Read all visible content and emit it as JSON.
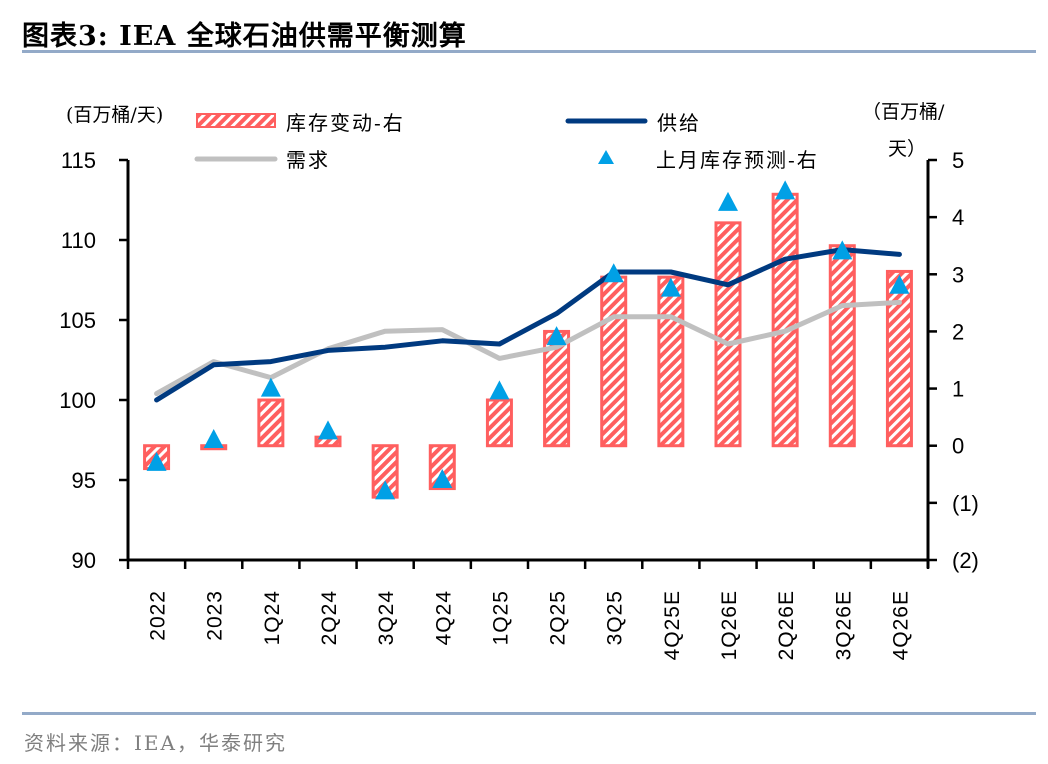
{
  "header": {
    "title": "图表3:  IEA 全球石油供需平衡测算"
  },
  "footer": {
    "source": "资料来源：IEA，华泰研究"
  },
  "colors": {
    "supply": "#003a80",
    "demand": "#c0c0c0",
    "inventory_bar": "#ff5f5f",
    "forecast_marker": "#00a0e6",
    "rule": "#93aac8"
  },
  "chart_data": {
    "type": "bar",
    "title": "IEA 全球石油供需平衡测算",
    "categories": [
      "2022",
      "2023",
      "1Q24",
      "2Q24",
      "3Q24",
      "4Q24",
      "1Q25",
      "2Q25",
      "3Q25",
      "4Q25E",
      "1Q26E",
      "2Q26E",
      "3Q26E",
      "4Q26E"
    ],
    "left_axis": {
      "label": "(百万桶/天)",
      "ylim": [
        90,
        115
      ],
      "ticks": [
        90,
        95,
        100,
        105,
        110,
        115
      ],
      "tick_labels": [
        "90",
        "95",
        "100",
        "105",
        "110",
        "115"
      ]
    },
    "right_axis": {
      "label_line1": "（百万桶/",
      "label_line2": "天）",
      "ylim": [
        -2,
        5
      ],
      "ticks": [
        -2,
        -1,
        0,
        1,
        2,
        3,
        4,
        5
      ],
      "tick_labels": [
        "(2)",
        "(1)",
        "0",
        "1",
        "2",
        "3",
        "4",
        "5"
      ]
    },
    "series": [
      {
        "name": "库存变动-右",
        "type": "bar",
        "axis": "right",
        "values": [
          -0.4,
          -0.05,
          0.8,
          0.15,
          -0.9,
          -0.75,
          0.8,
          2.0,
          2.95,
          2.95,
          3.9,
          4.4,
          3.5,
          3.05
        ]
      },
      {
        "name": "供给",
        "type": "line",
        "axis": "left",
        "values": [
          100.0,
          102.2,
          102.4,
          103.1,
          103.3,
          103.7,
          103.5,
          105.4,
          108.0,
          108.0,
          107.2,
          108.8,
          109.4,
          109.1
        ]
      },
      {
        "name": "需求",
        "type": "line",
        "axis": "left",
        "values": [
          100.4,
          102.4,
          101.4,
          103.2,
          104.3,
          104.4,
          102.6,
          103.3,
          105.2,
          105.2,
          103.5,
          104.3,
          105.9,
          106.1
        ]
      },
      {
        "name": "上月库存预测-右",
        "type": "scatter",
        "marker": "triangle",
        "axis": "right",
        "values": [
          -0.3,
          0.1,
          1.0,
          0.25,
          -0.8,
          -0.6,
          0.95,
          1.9,
          3.0,
          2.75,
          4.25,
          4.45,
          3.4,
          2.8
        ]
      }
    ],
    "legend": {
      "placement": "top",
      "entries": [
        "库存变动-右",
        "供给",
        "需求",
        "上月库存预测-右"
      ]
    },
    "grid": false
  }
}
